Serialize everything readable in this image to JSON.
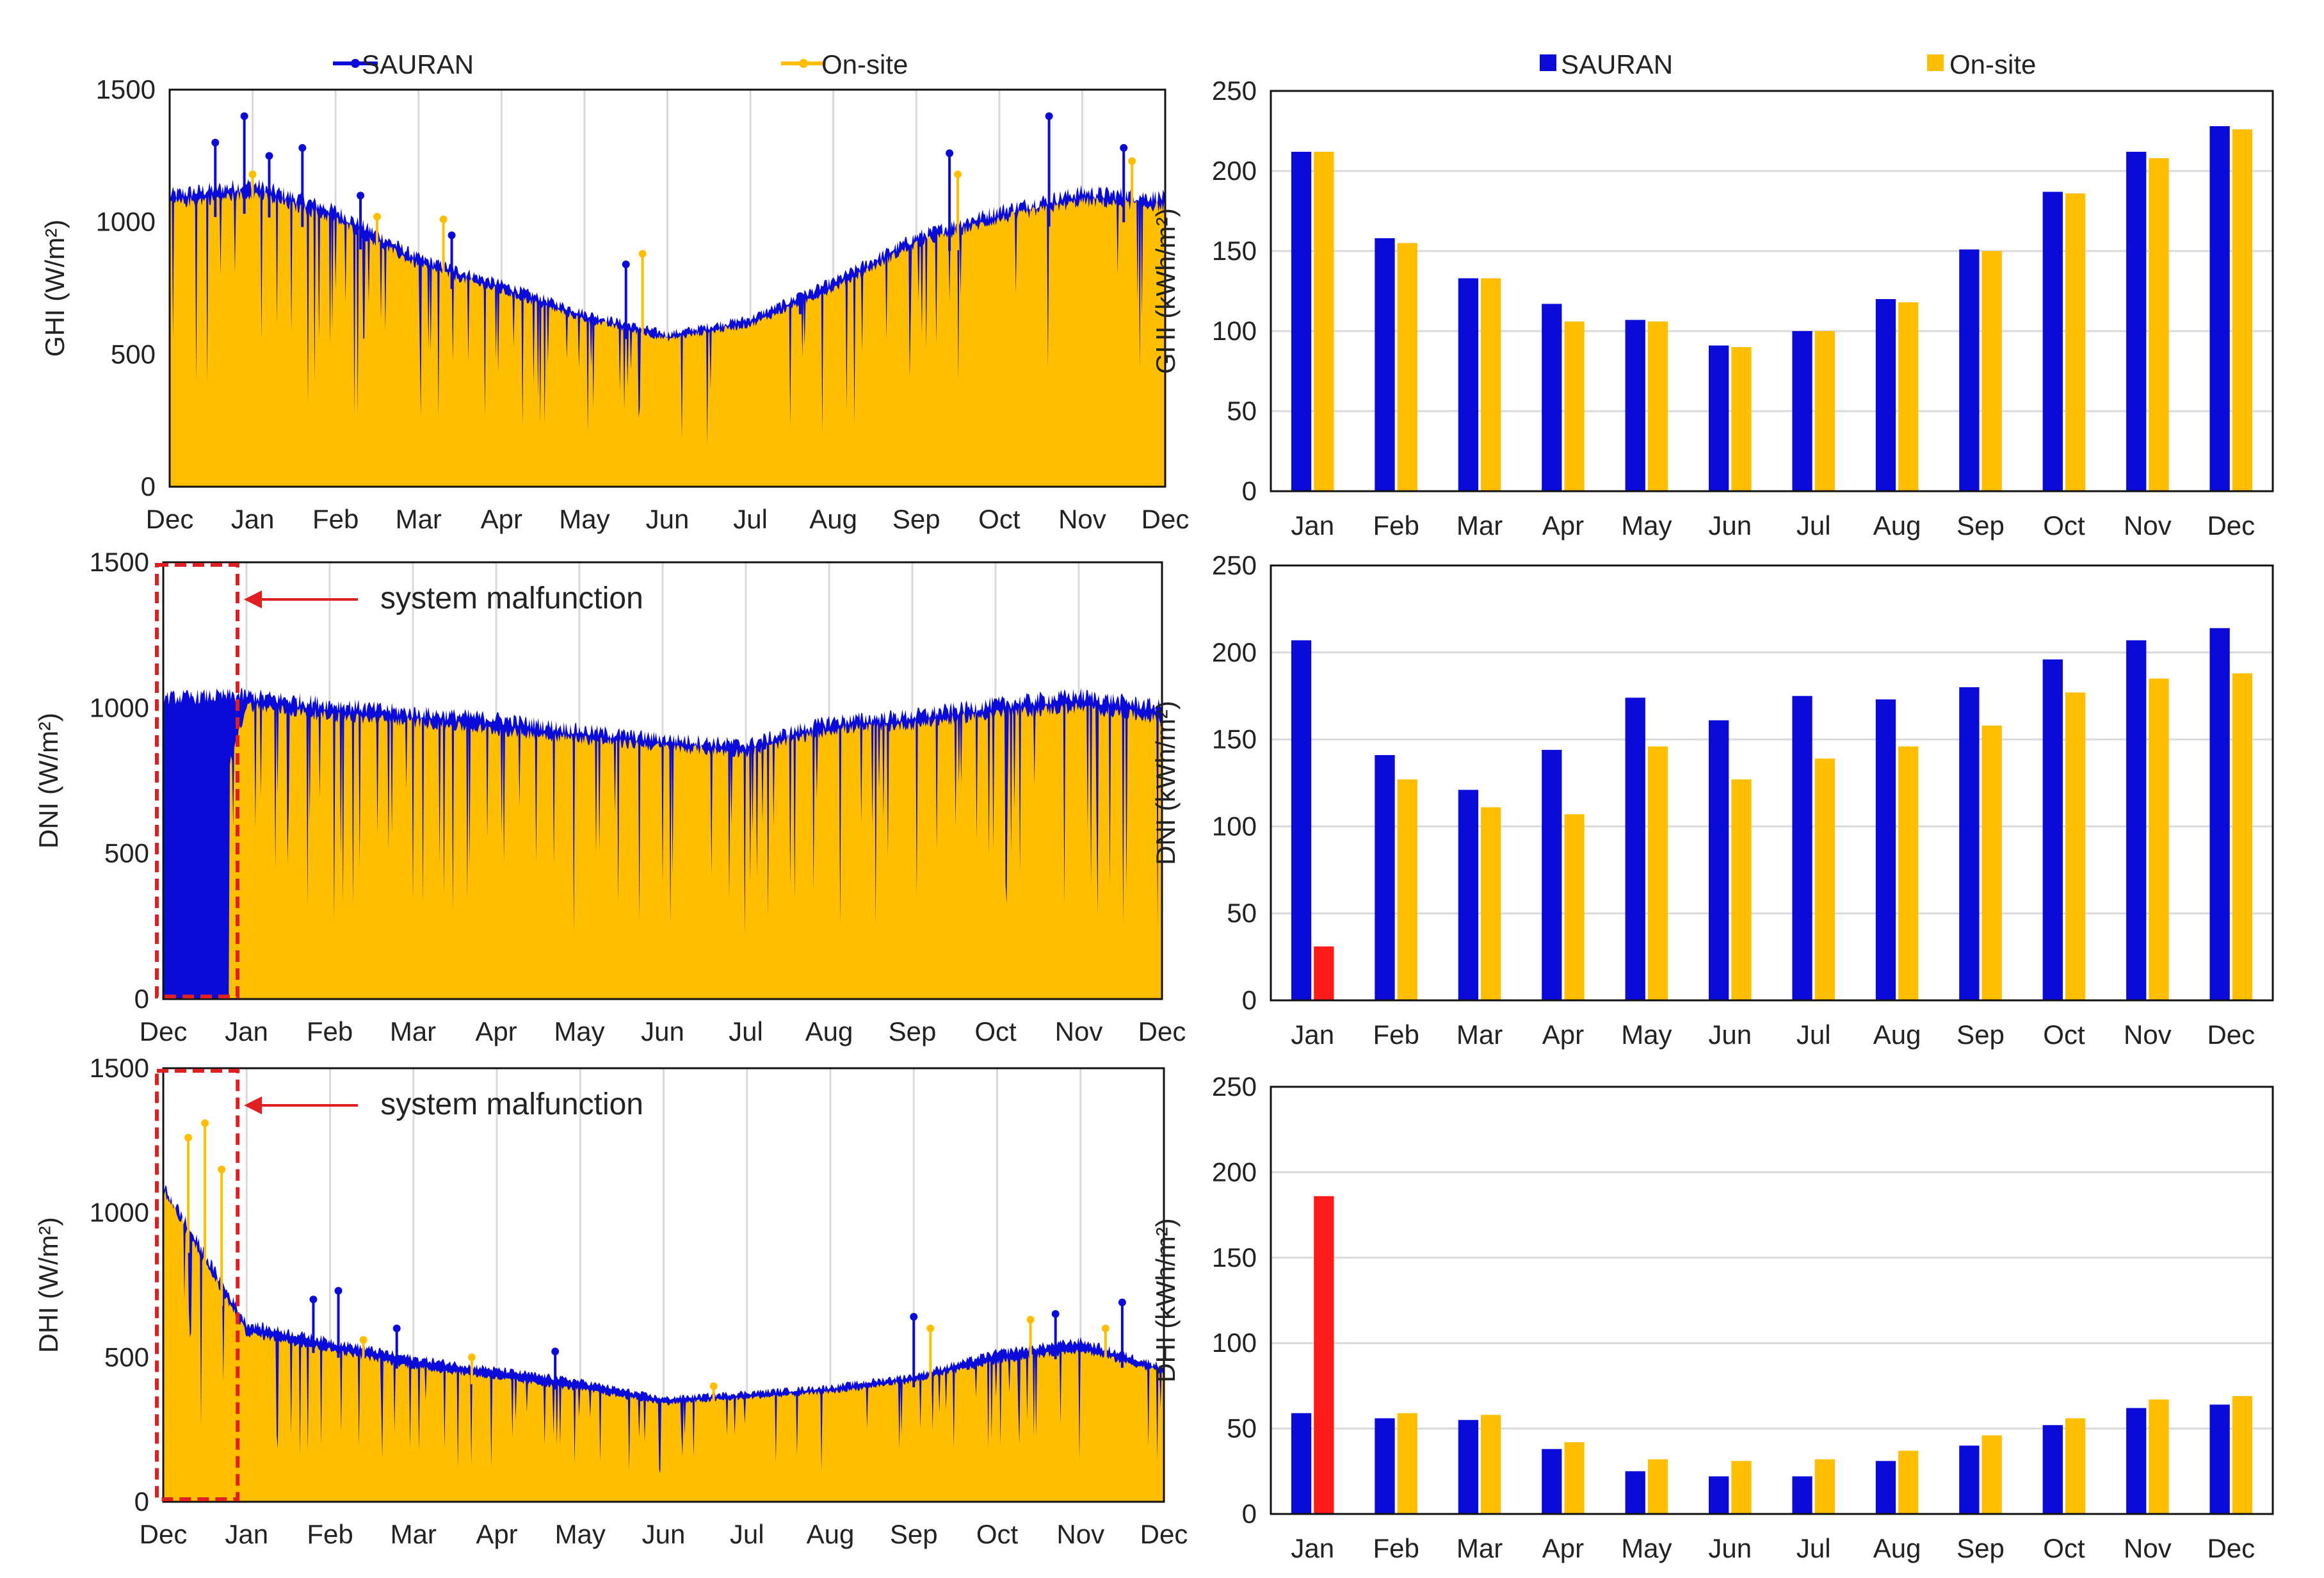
{
  "figure": {
    "colors": {
      "sauran": "#0a0ad9",
      "onsite": "#ffbf00",
      "malfunction": "#ff1a1a",
      "annotation": "#e02020",
      "grid": "#d9d9d9",
      "axis": "#111111"
    }
  },
  "chart_data": [
    {
      "id": "ghi_ts",
      "type": "area",
      "ylabel": "GHI (W/m²)",
      "ylim": [
        0,
        1500
      ],
      "yticks": [
        "0",
        "500",
        "1000",
        "1500"
      ],
      "xticks": [
        "Dec",
        "Jan",
        "Feb",
        "Mar",
        "Apr",
        "May",
        "Jun",
        "Jul",
        "Aug",
        "Sep",
        "Oct",
        "Nov",
        "Dec"
      ],
      "legend": {
        "position": "top",
        "entries": [
          "SAURAN",
          "On-site"
        ]
      },
      "series": [
        {
          "name": "SAURAN",
          "envelope_by_month": [
            1110,
            1150,
            1050,
            870,
            770,
            660,
            580,
            640,
            780,
            950,
            1050,
            1120,
            1100
          ],
          "spikes": [
            [
              0.55,
              1300
            ],
            [
              0.9,
              1400
            ],
            [
              1.2,
              1250
            ],
            [
              1.6,
              1280
            ],
            [
              2.3,
              1100
            ],
            [
              3.4,
              950
            ],
            [
              5.5,
              840
            ],
            [
              7.6,
              720
            ],
            [
              9.4,
              1260
            ],
            [
              10.6,
              1400
            ],
            [
              11.5,
              1280
            ]
          ]
        },
        {
          "name": "On-site",
          "envelope_by_month": [
            1100,
            1140,
            1040,
            860,
            760,
            650,
            575,
            630,
            770,
            945,
            1040,
            1110,
            1090
          ],
          "spikes": [
            [
              1.0,
              1180
            ],
            [
              2.5,
              1020
            ],
            [
              3.3,
              1010
            ],
            [
              5.7,
              880
            ],
            [
              9.5,
              1180
            ],
            [
              11.6,
              1230
            ]
          ]
        }
      ]
    },
    {
      "id": "dni_ts",
      "type": "area",
      "ylabel": "DNI (W/m²)",
      "ylim": [
        0,
        1500
      ],
      "yticks": [
        "0",
        "500",
        "1000",
        "1500"
      ],
      "xticks": [
        "Dec",
        "Jan",
        "Feb",
        "Mar",
        "Apr",
        "May",
        "Jun",
        "Jul",
        "Aug",
        "Sep",
        "Oct",
        "Nov",
        "Dec"
      ],
      "annotation": "system malfunction",
      "malfunction_month_range": [
        0,
        0.8
      ],
      "series": [
        {
          "name": "SAURAN",
          "envelope_by_month": [
            1040,
            1050,
            1020,
            990,
            970,
            930,
            900,
            880,
            960,
            980,
            1020,
            1050,
            1010
          ]
        },
        {
          "name": "On-site",
          "envelope_by_month": [
            0,
            1040,
            1000,
            980,
            950,
            920,
            890,
            870,
            950,
            970,
            1010,
            1030,
            990
          ]
        }
      ]
    },
    {
      "id": "dhi_ts",
      "type": "area",
      "ylabel": "DHI (W/m²)",
      "ylim": [
        0,
        1500
      ],
      "yticks": [
        "0",
        "500",
        "1000",
        "1500"
      ],
      "xticks": [
        "Dec",
        "Jan",
        "Feb",
        "Mar",
        "Apr",
        "May",
        "Jun",
        "Jul",
        "Aug",
        "Sep",
        "Oct",
        "Nov",
        "Dec"
      ],
      "annotation": "system malfunction",
      "malfunction_month_range": [
        0,
        0.8
      ],
      "series": [
        {
          "name": "SAURAN",
          "envelope_by_month": [
            1100,
            620,
            560,
            500,
            460,
            420,
            360,
            380,
            400,
            440,
            520,
            560,
            470
          ],
          "spikes": [
            [
              1.8,
              700
            ],
            [
              2.1,
              730
            ],
            [
              2.8,
              600
            ],
            [
              4.7,
              520
            ],
            [
              9.0,
              640
            ],
            [
              10.7,
              650
            ],
            [
              11.5,
              690
            ]
          ]
        },
        {
          "name": "On-site",
          "envelope_by_month": [
            1110,
            600,
            540,
            480,
            440,
            400,
            350,
            370,
            390,
            430,
            500,
            540,
            460
          ],
          "spikes": [
            [
              0.3,
              1260
            ],
            [
              0.5,
              1310
            ],
            [
              0.7,
              1150
            ],
            [
              2.4,
              560
            ],
            [
              3.7,
              500
            ],
            [
              6.6,
              400
            ],
            [
              9.2,
              600
            ],
            [
              10.4,
              630
            ],
            [
              11.3,
              600
            ]
          ]
        }
      ]
    },
    {
      "id": "ghi_monthly",
      "type": "bar",
      "ylabel": "GHI (kWh/m²)",
      "ylim": [
        0,
        250
      ],
      "yticks": [
        "0",
        "50",
        "100",
        "150",
        "200",
        "250"
      ],
      "categories": [
        "Jan",
        "Feb",
        "Mar",
        "Apr",
        "May",
        "Jun",
        "Jul",
        "Aug",
        "Sep",
        "Oct",
        "Nov",
        "Dec"
      ],
      "legend": {
        "position": "top",
        "entries": [
          "SAURAN",
          "On-site"
        ]
      },
      "series": [
        {
          "name": "SAURAN",
          "values": [
            212,
            158,
            133,
            117,
            107,
            91,
            100,
            120,
            151,
            187,
            212,
            228
          ]
        },
        {
          "name": "On-site",
          "values": [
            212,
            155,
            133,
            106,
            106,
            90,
            100,
            118,
            150,
            186,
            208,
            226
          ]
        }
      ]
    },
    {
      "id": "dni_monthly",
      "type": "bar",
      "ylabel": "DNI (kWh/m²)",
      "ylim": [
        0,
        250
      ],
      "yticks": [
        "0",
        "50",
        "100",
        "150",
        "200",
        "250"
      ],
      "categories": [
        "Jan",
        "Feb",
        "Mar",
        "Apr",
        "May",
        "Jun",
        "Jul",
        "Aug",
        "Sep",
        "Oct",
        "Nov",
        "Dec"
      ],
      "highlight": {
        "series": "On-site",
        "index": 0
      },
      "series": [
        {
          "name": "SAURAN",
          "values": [
            207,
            141,
            121,
            144,
            174,
            161,
            175,
            173,
            180,
            196,
            207,
            214
          ]
        },
        {
          "name": "On-site",
          "values": [
            31,
            127,
            111,
            107,
            146,
            127,
            139,
            146,
            158,
            177,
            185,
            188
          ]
        }
      ]
    },
    {
      "id": "dhi_monthly",
      "type": "bar",
      "ylabel": "DHI (kWh/m²)",
      "ylim": [
        0,
        250
      ],
      "yticks": [
        "0",
        "50",
        "100",
        "150",
        "200",
        "250"
      ],
      "categories": [
        "Jan",
        "Feb",
        "Mar",
        "Apr",
        "May",
        "Jun",
        "Jul",
        "Aug",
        "Sep",
        "Oct",
        "Nov",
        "Dec"
      ],
      "highlight": {
        "series": "On-site",
        "index": 0
      },
      "series": [
        {
          "name": "SAURAN",
          "values": [
            59,
            56,
            55,
            38,
            25,
            22,
            22,
            31,
            40,
            52,
            62,
            64
          ]
        },
        {
          "name": "On-site",
          "values": [
            186,
            59,
            58,
            42,
            32,
            31,
            32,
            37,
            46,
            56,
            67,
            69
          ]
        }
      ]
    }
  ]
}
